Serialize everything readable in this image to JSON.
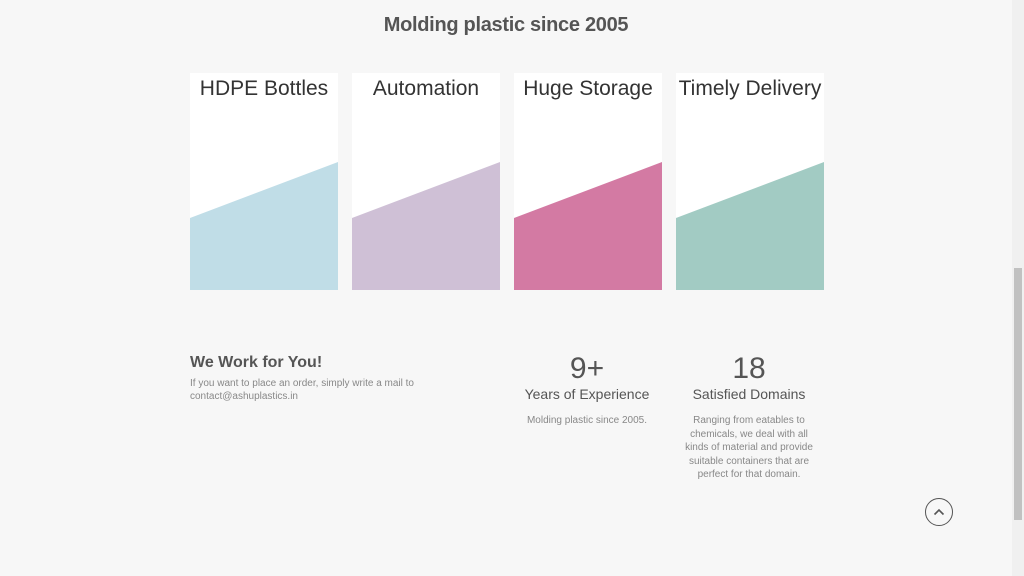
{
  "headline": "Molding plastic since 2005",
  "cards": [
    {
      "title": "HDPE Bottles",
      "color": "#c0dde7"
    },
    {
      "title": "Automation",
      "color": "#cfc0d6"
    },
    {
      "title": "Huge Storage",
      "color": "#d37aa3"
    },
    {
      "title": "Timely Delivery",
      "color": "#a2cbc3"
    }
  ],
  "work": {
    "title": "We Work for You!",
    "line1": "If you want to place an order, simply write a mail to",
    "line2": "contact@ashuplastics.in"
  },
  "stats": [
    {
      "number": "9+",
      "label": "Years of Experience",
      "desc": "Molding plastic since 2005."
    },
    {
      "number": "18",
      "label": "Satisfied Domains",
      "desc": "Ranging from eatables to chemicals, we deal with all kinds of material and provide suitable containers that are perfect for that domain."
    }
  ],
  "icons": {
    "scroll_top": "chevron-up-icon"
  }
}
